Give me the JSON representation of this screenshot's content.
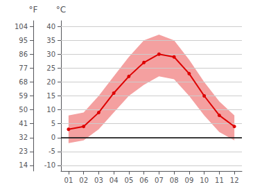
{
  "chart_data": {
    "type": "line",
    "categories": [
      "01",
      "02",
      "03",
      "04",
      "05",
      "06",
      "07",
      "08",
      "09",
      "10",
      "11",
      "12"
    ],
    "series": [
      {
        "type": "band",
        "color": "#f4a0a0",
        "low": [
          -2,
          -1,
          3,
          9,
          15,
          19,
          22,
          21,
          15,
          8,
          2,
          -1
        ],
        "high": [
          8,
          9,
          15,
          22,
          29,
          35,
          37,
          35,
          28,
          20,
          13,
          8
        ]
      },
      {
        "type": "line",
        "color": "#dd0000",
        "marker": "circle",
        "values": [
          3,
          4,
          9,
          16,
          22,
          27,
          30,
          29,
          23,
          15,
          8,
          4
        ]
      }
    ],
    "reference_lines": [
      {
        "y": 0,
        "color": "#000000"
      }
    ],
    "ylabel": "°C",
    "ylim": [
      -12,
      42
    ],
    "yticks": [
      -10,
      -5,
      0,
      5,
      10,
      15,
      20,
      25,
      30,
      35,
      40
    ],
    "y2label": "°F",
    "y2lim": [
      10.4,
      107.6
    ],
    "y2ticks": [
      14,
      23,
      32,
      41,
      50,
      59,
      68,
      77,
      86,
      95,
      104
    ],
    "grid": true
  }
}
